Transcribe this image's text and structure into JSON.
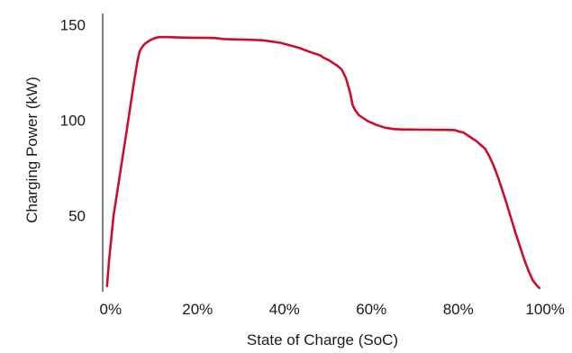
{
  "chart_data": {
    "type": "line",
    "xlabel": "State of Charge (SoC)",
    "ylabel": "Charging Power (kW)",
    "xlim": [
      -1,
      101
    ],
    "ylim": [
      10,
      154
    ],
    "x_ticks": [
      0,
      20,
      40,
      60,
      80,
      100
    ],
    "x_tick_labels": [
      "0%",
      "20%",
      "40%",
      "60%",
      "80%",
      "100%"
    ],
    "y_ticks": [
      50,
      100,
      150
    ],
    "y_tick_labels": [
      "50",
      "100",
      "150"
    ],
    "grid": false,
    "series": [
      {
        "color": "#c8102e",
        "x": [
          0,
          0.5,
          1.5,
          3,
          4.5,
          6,
          7,
          7.5,
          8,
          8.5,
          9,
          10,
          11,
          12,
          14,
          17,
          20,
          23,
          25,
          27,
          30,
          33,
          36,
          40,
          44,
          47,
          49,
          50,
          51,
          52,
          53,
          54,
          55,
          55.5,
          56,
          56.5,
          57,
          58,
          60,
          62,
          64,
          66,
          68,
          70,
          72,
          74,
          76,
          78,
          80,
          81,
          82,
          83,
          84,
          85,
          86,
          87,
          88,
          89,
          90,
          91,
          92,
          93,
          94,
          95,
          96,
          97,
          98,
          99,
          99.5
        ],
        "y": [
          13,
          27,
          50,
          72,
          94,
          117,
          131,
          136,
          138,
          139.5,
          140.5,
          142,
          143,
          143.5,
          143.5,
          143.3,
          143.2,
          143.1,
          143,
          142.5,
          142.3,
          142.1,
          141.8,
          140.5,
          138,
          135.5,
          134,
          132.5,
          131.5,
          130,
          128.5,
          126.5,
          122,
          118,
          114,
          108,
          105.5,
          102.5,
          99.5,
          97.5,
          96,
          95.3,
          95.1,
          95.1,
          95,
          95,
          94.9,
          94.9,
          94.8,
          94,
          93.5,
          92,
          90.5,
          89,
          87,
          85,
          81,
          76,
          70,
          63,
          56,
          48.5,
          41,
          34,
          27,
          21,
          16,
          13,
          12
        ]
      }
    ]
  }
}
